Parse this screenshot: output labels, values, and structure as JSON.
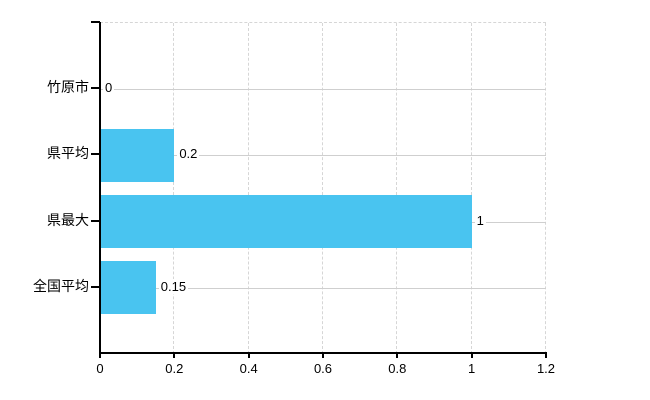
{
  "chart_data": {
    "type": "bar",
    "orientation": "horizontal",
    "title": "",
    "xlabel": "",
    "ylabel": "",
    "categories": [
      "竹原市",
      "県平均",
      "県最大",
      "全国平均"
    ],
    "values": [
      0,
      0.2,
      1,
      0.15
    ],
    "value_labels": [
      "0",
      "0.2",
      "1",
      "0.15"
    ],
    "x_ticks": [
      0,
      0.2,
      0.4,
      0.6,
      0.8,
      1,
      1.2
    ],
    "x_tick_labels": [
      "0",
      "0.2",
      "0.4",
      "0.6",
      "0.8",
      "1",
      "1.2"
    ],
    "xlim": [
      0,
      1.2
    ],
    "grid": true,
    "legend": false,
    "bar_color": "#49c4f0",
    "axis_color": "#000000",
    "gridline_color": "#d6d6d6",
    "row_gridline_color": "#cfcfcf",
    "text_color": "#000000",
    "background_color": "#ffffff"
  }
}
